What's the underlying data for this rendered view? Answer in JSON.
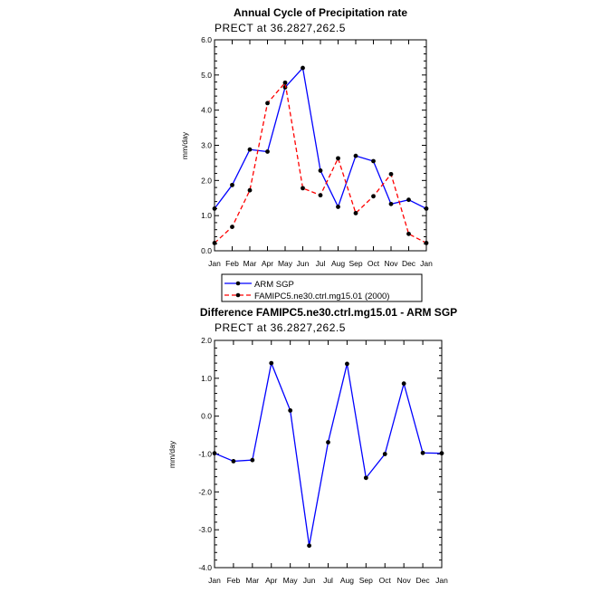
{
  "chart_data": [
    {
      "type": "line",
      "title": "Annual Cycle of Precipitation rate",
      "subtitle": "PRECT at 36.2827,262.5",
      "xlabel": "",
      "ylabel": "mm/day",
      "categories": [
        "Jan",
        "Feb",
        "Mar",
        "Apr",
        "May",
        "Jun",
        "Jul",
        "Aug",
        "Sep",
        "Oct",
        "Nov",
        "Dec",
        "Jan"
      ],
      "ylim": [
        0,
        6
      ],
      "yticks": [
        "0.0",
        "1.0",
        "2.0",
        "3.0",
        "4.0",
        "5.0",
        "6.0"
      ],
      "series": [
        {
          "name": "ARM SGP",
          "color": "#0000ff",
          "dash": "solid",
          "values": [
            1.2,
            1.87,
            2.88,
            2.82,
            4.65,
            5.2,
            2.28,
            1.25,
            2.7,
            2.55,
            1.33,
            1.45,
            1.2
          ]
        },
        {
          "name": "FAMIPC5.ne30.ctrl.mg15.01 (2000)",
          "color": "#ff0000",
          "dash": "dashed",
          "values": [
            0.22,
            0.68,
            1.72,
            4.2,
            4.78,
            1.78,
            1.58,
            2.63,
            1.07,
            1.55,
            2.18,
            0.48,
            0.22
          ]
        }
      ],
      "legend": "bottom"
    },
    {
      "type": "line",
      "title": "Difference FAMIPC5.ne30.ctrl.mg15.01 - ARM SGP",
      "subtitle": "PRECT at 36.2827,262.5",
      "xlabel": "",
      "ylabel": "mm/day",
      "categories": [
        "Jan",
        "Feb",
        "Mar",
        "Apr",
        "May",
        "Jun",
        "Jul",
        "Aug",
        "Sep",
        "Oct",
        "Nov",
        "Dec",
        "Jan"
      ],
      "ylim": [
        -4,
        2
      ],
      "yticks": [
        "-4.0",
        "-3.0",
        "-2.0",
        "-1.0",
        "0.0",
        "1.0",
        "2.0"
      ],
      "series": [
        {
          "color": "#0000ff",
          "dash": "solid",
          "values": [
            -0.98,
            -1.19,
            -1.16,
            1.4,
            0.15,
            -3.42,
            -0.69,
            1.38,
            -1.63,
            -1.0,
            0.86,
            -0.97,
            -0.98
          ]
        }
      ]
    }
  ]
}
